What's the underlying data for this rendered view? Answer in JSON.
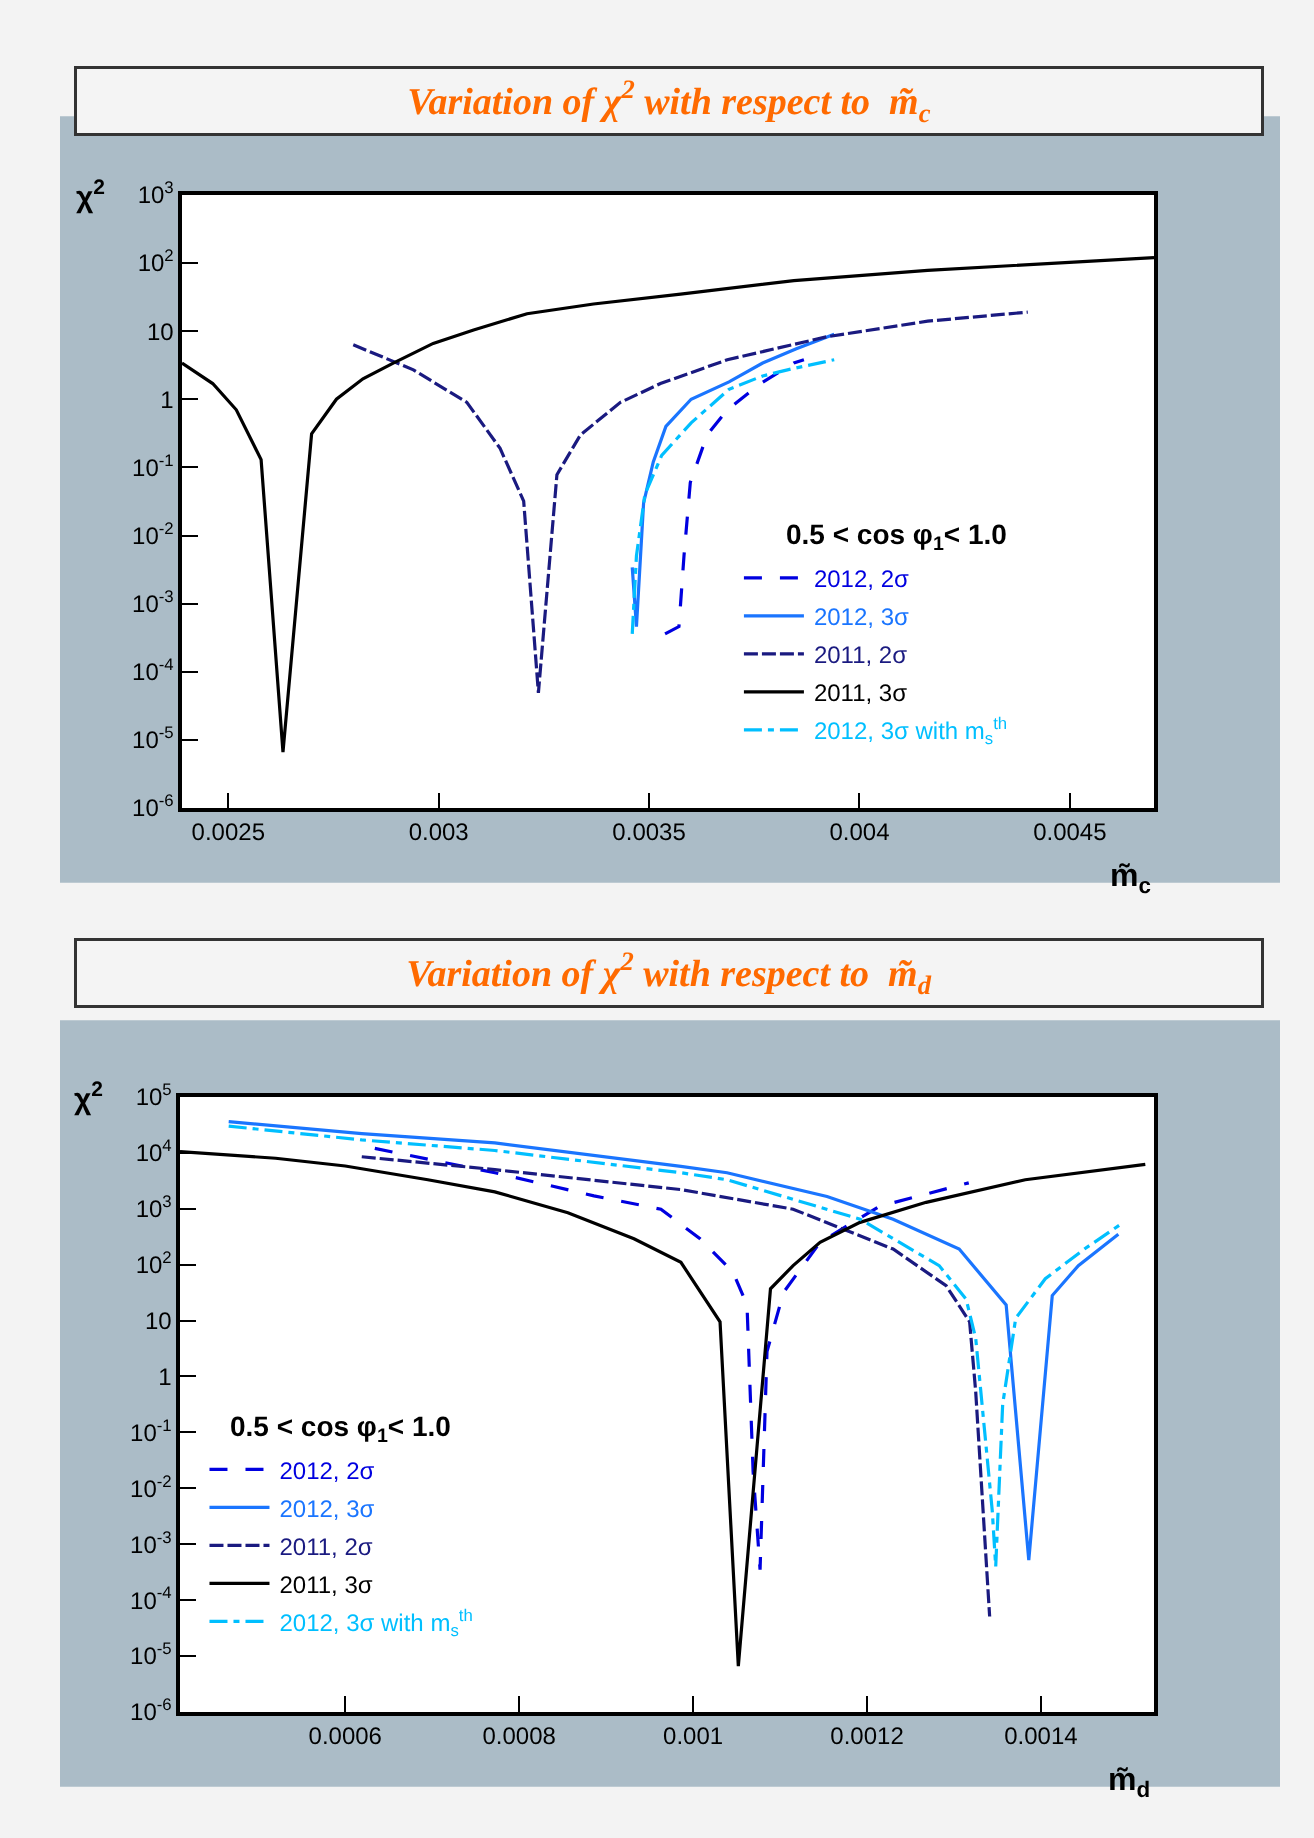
{
  "chart_data": [
    {
      "type": "line",
      "title": "Variation of χ$^{2}$ with respect to  m̃$_{c}$",
      "xlabel": "m̃$_{c}$",
      "ylabel": "χ$^{2}$",
      "log": "y",
      "legend": "bottom right",
      "marker": "none",
      "xlim": [
        0.00239,
        0.0047
      ],
      "xticks": [
        0.0025,
        0.003,
        0.0035,
        0.004,
        0.0045
      ],
      "ylim": [
        1e-06,
        1000
      ],
      "yticks": [
        {
          "value": 1e-06,
          "label": "10$^{-6}$"
        },
        {
          "value": 1e-05,
          "label": "10$^{-5}$"
        },
        {
          "value": 0.0001,
          "label": "10$^{-4}$"
        },
        {
          "value": 0.001,
          "label": "10$^{-3}$"
        },
        {
          "value": 0.01,
          "label": "10$^{-2}$"
        },
        {
          "value": 0.1,
          "label": "10$^{-1}$"
        },
        1,
        10,
        {
          "value": 100,
          "label": "10$^{2}$"
        },
        {
          "value": 1000,
          "label": "10$^{3}$"
        }
      ],
      "annotations": [
        "0.5 < cos φ$_{1}$< 1.0"
      ],
      "series": [
        {
          "name": "2012, 2σ",
          "color": "#0000e0",
          "line_style": "dashed",
          "x": [
            0.003538,
            0.003571,
            0.003583,
            0.003598,
            0.003638,
            0.003686,
            0.003765,
            0.003844,
            0.003868
          ],
          "values": [
            0.00036,
            0.00046,
            0.005,
            0.06,
            0.3,
            0.7,
            1.7,
            3.4,
            3.8
          ]
        },
        {
          "name": "2012, 3σ",
          "color": "#1a75ff",
          "line_style": "solid",
          "x": [
            0.00346,
            0.00347,
            0.003487,
            0.00351,
            0.00354,
            0.0036,
            0.00369,
            0.00377,
            0.00385,
            0.00394
          ],
          "values": [
            0.0034,
            0.00046,
            0.03,
            0.12,
            0.4,
            1,
            1.8,
            3.4,
            5.5,
            9
          ]
        },
        {
          "name": "2011, 2σ",
          "color": "#1a1a80",
          "line_style": "longdash",
          "x": [
            0.002797,
            0.00294,
            0.003067,
            0.003146,
            0.003202,
            0.003237,
            0.003281,
            0.003337,
            0.003432,
            0.003527,
            0.003686,
            0.003924,
            0.004162,
            0.0044
          ],
          "values": [
            6.3,
            2.7,
            0.9,
            0.19,
            0.032,
            4.9e-05,
            0.078,
            0.3,
            0.9,
            1.7,
            3.8,
            8.3,
            14,
            19
          ]
        },
        {
          "name": "2011, 3σ",
          "color": "#000000",
          "line_style": "solid",
          "x": [
            0.00239,
            0.002463,
            0.002519,
            0.002578,
            0.00263,
            0.002698,
            0.002757,
            0.00282,
            0.002892,
            0.002987,
            0.003083,
            0.00321,
            0.003368,
            0.003575,
            0.003844,
            0.004162,
            0.0047
          ],
          "values": [
            3.4,
            1.7,
            0.7,
            0.13,
            6.6e-06,
            0.31,
            1,
            2,
            3.4,
            6.6,
            10.4,
            18,
            25,
            35,
            55,
            78,
            120
          ]
        },
        {
          "name": "2012, 3σ with m$_{s}$$^{th}$",
          "color": "#00bfff",
          "line_style": "dashdot",
          "x": [
            0.00346,
            0.00347,
            0.00349,
            0.00353,
            0.0036,
            0.00369,
            0.00377,
            0.00384,
            0.00394
          ],
          "values": [
            0.00036,
            0.005,
            0.04,
            0.15,
            0.45,
            1.4,
            2.2,
            2.8,
            3.8
          ]
        }
      ]
    },
    {
      "type": "line",
      "title": "Variation of χ$^{2}$ with respect to  m̃$_{d}$",
      "xlabel": "m̃$_{d}$",
      "ylabel": "χ$^{2}$",
      "log": "y",
      "legend": "bottom left",
      "marker": "none",
      "xlim": [
        0.00041,
        0.00153
      ],
      "xticks": [
        0.0006,
        0.0008,
        0.001,
        0.0012,
        0.0014
      ],
      "ylim": [
        1e-06,
        100000
      ],
      "yticks": [
        {
          "value": 1e-06,
          "label": "10$^{-6}$"
        },
        {
          "value": 1e-05,
          "label": "10$^{-5}$"
        },
        {
          "value": 0.0001,
          "label": "10$^{-4}$"
        },
        {
          "value": 0.001,
          "label": "10$^{-3}$"
        },
        {
          "value": 0.01,
          "label": "10$^{-2}$"
        },
        {
          "value": 0.1,
          "label": "10$^{-1}$"
        },
        1,
        10,
        {
          "value": 100,
          "label": "10$^{2}$"
        },
        {
          "value": 1000,
          "label": "10$^{3}$"
        },
        {
          "value": 10000,
          "label": "10$^{4}$"
        },
        {
          "value": 100000,
          "label": "10$^{5}$"
        }
      ],
      "annotations": [
        "0.5 < cos φ$_{1}$< 1.0"
      ],
      "series": [
        {
          "name": "2012, 2σ",
          "color": "#0000e0",
          "line_style": "dashed",
          "x": [
            0.000634,
            0.000772,
            0.000886,
            0.000963,
            0.001008,
            0.001046,
            0.001062,
            0.001069,
            0.001077,
            0.001085,
            0.001104,
            0.001146,
            0.001214,
            0.001317
          ],
          "values": [
            12000,
            4400,
            1700,
            980,
            290,
            73,
            19,
            0.02,
            0.00035,
            2.8,
            32,
            250,
            1100,
            2900
          ]
        },
        {
          "name": "2012, 3σ",
          "color": "#1a75ff",
          "line_style": "solid",
          "x": [
            0.000466,
            0.000619,
            0.000772,
            0.000986,
            0.001039,
            0.001154,
            0.00123,
            0.001306,
            0.00136,
            0.001386,
            0.001413,
            0.001443,
            0.001489
          ],
          "values": [
            36000,
            22000,
            15000,
            5700,
            4400,
            1650,
            650,
            190,
            19,
            0.00052,
            28,
            96,
            350
          ]
        },
        {
          "name": "2011, 2σ",
          "color": "#1a1a80",
          "line_style": "longdash",
          "x": [
            0.000619,
            0.000772,
            0.000986,
            0.001115,
            0.00123,
            0.001291,
            0.001318,
            0.001325,
            0.001341
          ],
          "values": [
            8500,
            5000,
            2200,
            980,
            190,
            42,
            9.5,
            0.53,
            5.1e-05
          ]
        },
        {
          "name": "2011, 3σ",
          "color": "#000000",
          "line_style": "solid",
          "x": [
            0.00041,
            0.00052,
            0.0006,
            0.000695,
            0.000772,
            0.000856,
            0.000932,
            0.000986,
            0.001031,
            0.001052,
            0.001089,
            0.001115,
            0.001146,
            0.001192,
            0.001268,
            0.001382,
            0.00152
          ],
          "values": [
            10500,
            8000,
            5800,
            3300,
            2000,
            850,
            290,
            110,
            9.5,
            6.6e-06,
            37,
            96,
            250,
            570,
            1300,
            3300,
            6200
          ]
        },
        {
          "name": "2012, 3σ with m$_{s}$$^{th}$",
          "color": "#00bfff",
          "line_style": "dashdot",
          "x": [
            0.000466,
            0.000619,
            0.000772,
            0.000986,
            0.001039,
            0.001192,
            0.001283,
            0.001314,
            0.001325,
            0.001344,
            0.001348,
            0.001356,
            0.001371,
            0.001405,
            0.00145,
            0.001492
          ],
          "values": [
            30000,
            17000,
            11000,
            4400,
            3300,
            650,
            96,
            24,
            4.8,
            0.004,
            0.0004,
            0.32,
            11,
            56,
            190,
            530
          ]
        }
      ]
    }
  ]
}
